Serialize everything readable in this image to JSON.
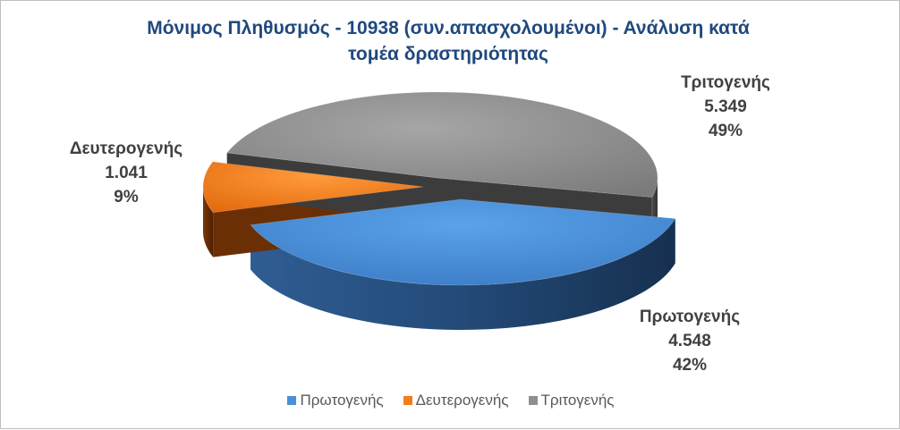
{
  "chart_data": {
    "type": "pie",
    "title_lines": [
      "Μόνιμος Πληθυσμός -  10938 (συν.απασχολουμένοι) -  Ανάλυση κατά",
      "τομέα δραστηριότητας"
    ],
    "categories": [
      "Πρωτογενής",
      "Δευτερογενής",
      "Τριτογενής"
    ],
    "values": [
      4548,
      1041,
      5349
    ],
    "value_labels": [
      "4.548",
      "1.041",
      "5.349"
    ],
    "percent_labels": [
      "42%",
      "9%",
      "49%"
    ],
    "colors": [
      "#4a90d9",
      "#f07e1a",
      "#8f8f8f"
    ],
    "side_colors": [
      "#1f3f66",
      "#6b2f06",
      "#3c3c3c"
    ],
    "style": "3d-exploded",
    "legend_position": "bottom"
  }
}
